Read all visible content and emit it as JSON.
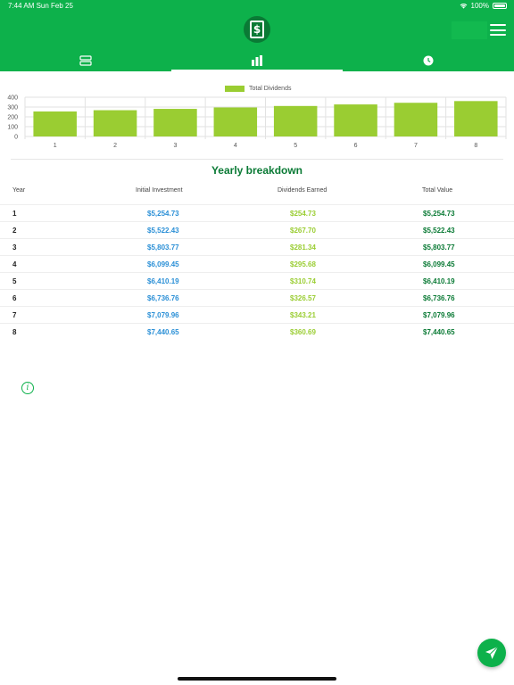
{
  "status_bar": {
    "time_date": "7:44 AM   Sun Feb 25",
    "battery": "100%"
  },
  "header": {
    "logo_icon": "dollar-document-icon",
    "menu_icon": "hamburger-menu-icon"
  },
  "tabs": [
    {
      "name": "list-tab",
      "icon": "list-icon",
      "active": false
    },
    {
      "name": "chart-tab",
      "icon": "bar-chart-icon",
      "active": true
    },
    {
      "name": "history-tab",
      "icon": "clock-icon",
      "active": false
    }
  ],
  "chart_data": {
    "type": "bar",
    "categories": [
      "1",
      "2",
      "3",
      "4",
      "5",
      "6",
      "7",
      "8"
    ],
    "series": [
      {
        "name": "Total Dividends",
        "values": [
          254.73,
          267.7,
          281.34,
          295.68,
          310.74,
          326.57,
          343.21,
          360.69
        ],
        "color": "#9acd32"
      }
    ],
    "ylim": [
      0,
      400
    ],
    "yticks": [
      "400",
      "300",
      "200",
      "100",
      "0"
    ],
    "grid": true,
    "legend": "top-center"
  },
  "breakdown": {
    "title": "Yearly breakdown",
    "headers": {
      "year": "Year",
      "initial": "Initial Investment",
      "dividends": "Dividends Earned",
      "total": "Total Value"
    },
    "rows": [
      {
        "year": "1",
        "initial": "$5,254.73",
        "dividends": "$254.73",
        "total": "$5,254.73"
      },
      {
        "year": "2",
        "initial": "$5,522.43",
        "dividends": "$267.70",
        "total": "$5,522.43"
      },
      {
        "year": "3",
        "initial": "$5,803.77",
        "dividends": "$281.34",
        "total": "$5,803.77"
      },
      {
        "year": "4",
        "initial": "$6,099.45",
        "dividends": "$295.68",
        "total": "$6,099.45"
      },
      {
        "year": "5",
        "initial": "$6,410.19",
        "dividends": "$310.74",
        "total": "$6,410.19"
      },
      {
        "year": "6",
        "initial": "$6,736.76",
        "dividends": "$326.57",
        "total": "$6,736.76"
      },
      {
        "year": "7",
        "initial": "$7,079.96",
        "dividends": "$343.21",
        "total": "$7,079.96"
      },
      {
        "year": "8",
        "initial": "$7,440.65",
        "dividends": "$360.69",
        "total": "$7,440.65"
      }
    ]
  },
  "colors": {
    "brand_green": "#0db14b",
    "dark_green": "#0a7a35",
    "blue": "#2a8fd6",
    "lime": "#9acd32"
  }
}
